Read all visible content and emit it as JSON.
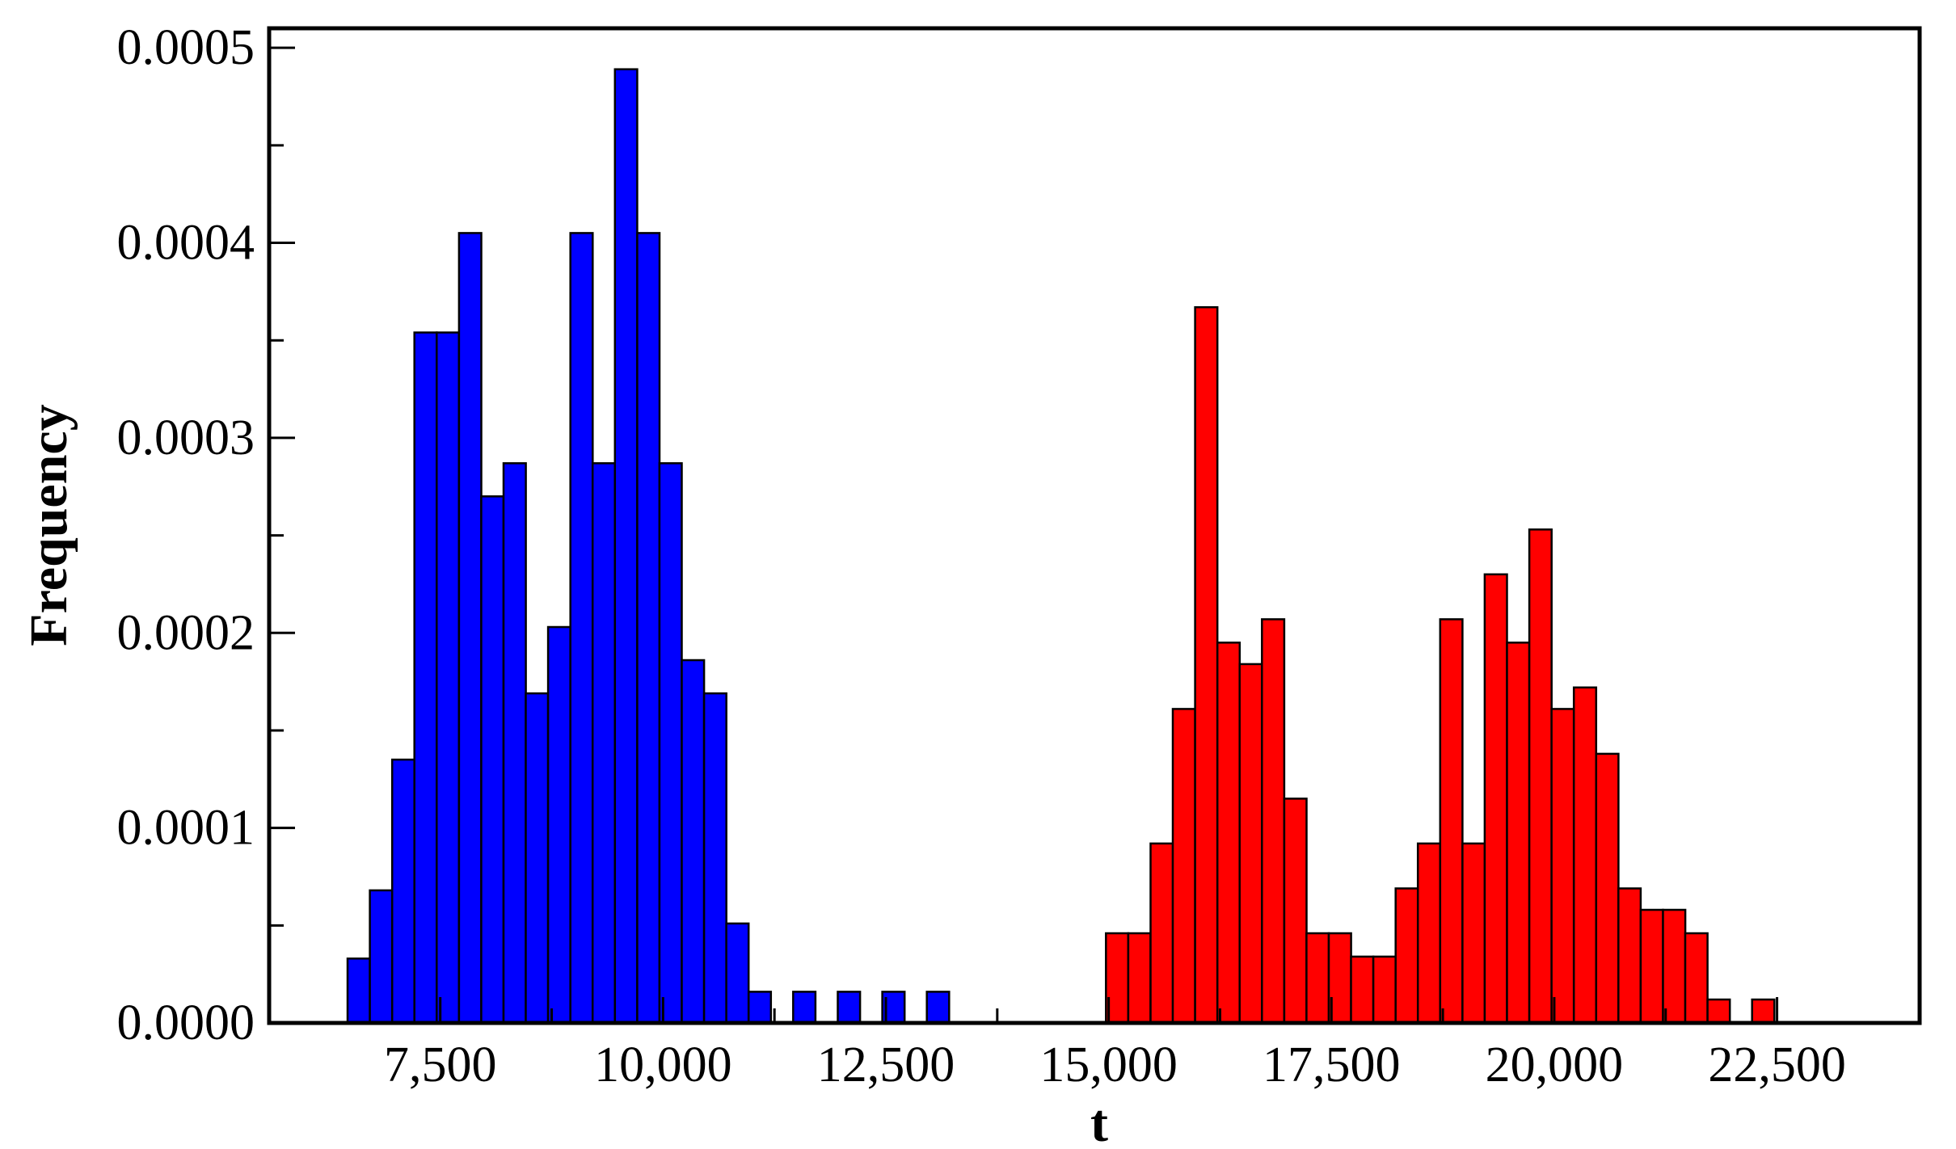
{
  "chart_data": {
    "type": "bar",
    "title": "",
    "xlabel": "t",
    "ylabel": "Frequency",
    "xlim": [
      5580,
      24100
    ],
    "ylim": [
      0,
      0.00051
    ],
    "grid": false,
    "legend": "none",
    "bin_width": 250,
    "x_ticks": [
      7500,
      10000,
      12500,
      15000,
      17500,
      20000,
      22500
    ],
    "x_tick_labels": [
      "7,500",
      "10,000",
      "12,500",
      "15,000",
      "17,500",
      "20,000",
      "22,500"
    ],
    "y_ticks": [
      0,
      0.0001,
      0.0002,
      0.0003,
      0.0004,
      0.0005
    ],
    "y_tick_labels": [
      "0.0000",
      "0.0001",
      "0.0002",
      "0.0003",
      "0.0004",
      "0.0005"
    ],
    "series": [
      {
        "color": "#0000ff",
        "bins": [
          {
            "x": 6460,
            "y": 3.3e-05
          },
          {
            "x": 6710,
            "y": 6.8e-05
          },
          {
            "x": 6960,
            "y": 0.000135
          },
          {
            "x": 7210,
            "y": 0.000354
          },
          {
            "x": 7460,
            "y": 0.000354
          },
          {
            "x": 7710,
            "y": 0.000405
          },
          {
            "x": 7960,
            "y": 0.00027
          },
          {
            "x": 8210,
            "y": 0.000287
          },
          {
            "x": 8460,
            "y": 0.000169
          },
          {
            "x": 8710,
            "y": 0.000203
          },
          {
            "x": 8960,
            "y": 0.000405
          },
          {
            "x": 9210,
            "y": 0.000287
          },
          {
            "x": 9460,
            "y": 0.000489
          },
          {
            "x": 9710,
            "y": 0.000405
          },
          {
            "x": 9960,
            "y": 0.000287
          },
          {
            "x": 10210,
            "y": 0.000186
          },
          {
            "x": 10460,
            "y": 0.000169
          },
          {
            "x": 10710,
            "y": 5.1e-05
          },
          {
            "x": 10960,
            "y": 1.6e-05
          },
          {
            "x": 11460,
            "y": 1.6e-05
          },
          {
            "x": 11960,
            "y": 1.6e-05
          },
          {
            "x": 12460,
            "y": 1.6e-05
          },
          {
            "x": 12960,
            "y": 1.6e-05
          }
        ]
      },
      {
        "color": "#ff0000",
        "bins": [
          {
            "x": 14970,
            "y": 4.6e-05
          },
          {
            "x": 15220,
            "y": 4.6e-05
          },
          {
            "x": 15470,
            "y": 9.2e-05
          },
          {
            "x": 15720,
            "y": 0.000161
          },
          {
            "x": 15970,
            "y": 0.000367
          },
          {
            "x": 16220,
            "y": 0.000195
          },
          {
            "x": 16470,
            "y": 0.000184
          },
          {
            "x": 16720,
            "y": 0.000207
          },
          {
            "x": 16970,
            "y": 0.000115
          },
          {
            "x": 17220,
            "y": 4.6e-05
          },
          {
            "x": 17470,
            "y": 4.6e-05
          },
          {
            "x": 17720,
            "y": 3.4e-05
          },
          {
            "x": 17970,
            "y": 3.4e-05
          },
          {
            "x": 18220,
            "y": 6.9e-05
          },
          {
            "x": 18470,
            "y": 9.2e-05
          },
          {
            "x": 18720,
            "y": 0.000207
          },
          {
            "x": 18970,
            "y": 9.2e-05
          },
          {
            "x": 19220,
            "y": 0.00023
          },
          {
            "x": 19470,
            "y": 0.000195
          },
          {
            "x": 19720,
            "y": 0.000253
          },
          {
            "x": 19970,
            "y": 0.000161
          },
          {
            "x": 20220,
            "y": 0.000172
          },
          {
            "x": 20470,
            "y": 0.000138
          },
          {
            "x": 20720,
            "y": 6.9e-05
          },
          {
            "x": 20970,
            "y": 5.8e-05
          },
          {
            "x": 21220,
            "y": 5.8e-05
          },
          {
            "x": 21470,
            "y": 4.6e-05
          },
          {
            "x": 21720,
            "y": 1.2e-05
          },
          {
            "x": 22220,
            "y": 1.2e-05
          }
        ]
      }
    ]
  }
}
